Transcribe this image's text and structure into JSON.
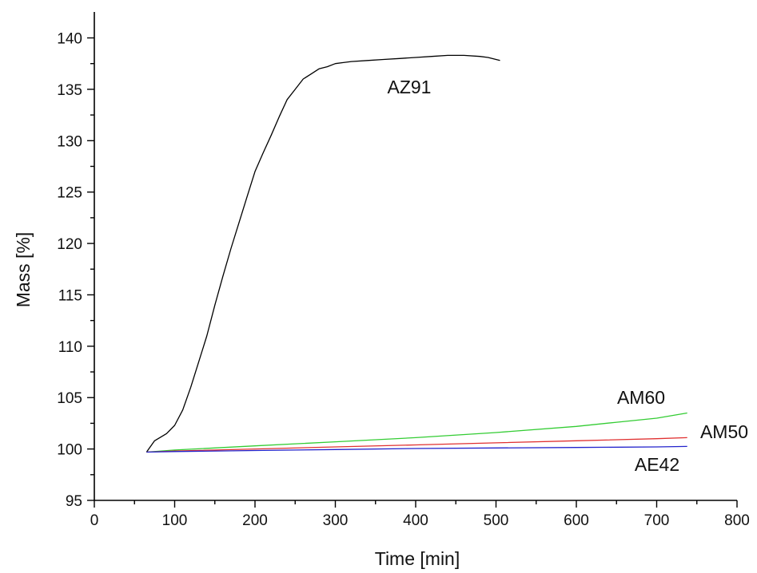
{
  "chart_data": {
    "type": "line",
    "title": "",
    "xlabel": "Time [min]",
    "ylabel": "Mass [%]",
    "xlim": [
      0,
      800
    ],
    "ylim": [
      95,
      140
    ],
    "xticks": [
      0,
      100,
      200,
      300,
      400,
      500,
      600,
      700,
      800
    ],
    "yticks": [
      95,
      100,
      105,
      110,
      115,
      120,
      125,
      130,
      135,
      140
    ],
    "grid": false,
    "legend": "none (series labelled directly on curves)",
    "series": [
      {
        "name": "AZ91",
        "color": "#000000",
        "x": [
          65,
          75,
          90,
          100,
          110,
          120,
          130,
          140,
          150,
          160,
          170,
          180,
          190,
          200,
          210,
          220,
          230,
          240,
          250,
          260,
          270,
          280,
          290,
          300,
          310,
          320,
          340,
          360,
          380,
          400,
          420,
          440,
          460,
          480,
          490,
          505
        ],
        "y": [
          99.7,
          100.8,
          101.5,
          102.3,
          103.8,
          106.0,
          108.5,
          111.0,
          114.0,
          116.8,
          119.5,
          122.0,
          124.5,
          127.0,
          128.8,
          130.5,
          132.3,
          134.0,
          135.0,
          136.0,
          136.5,
          137.0,
          137.2,
          137.5,
          137.6,
          137.7,
          137.8,
          137.9,
          138.0,
          138.1,
          138.2,
          138.3,
          138.3,
          138.2,
          138.1,
          137.8
        ]
      },
      {
        "name": "AM60",
        "color": "#33cc33",
        "x": [
          65,
          100,
          200,
          300,
          400,
          500,
          600,
          650,
          700,
          738
        ],
        "y": [
          99.7,
          99.9,
          100.3,
          100.7,
          101.1,
          101.6,
          102.2,
          102.6,
          103.0,
          103.5
        ]
      },
      {
        "name": "AM50",
        "color": "#e03030",
        "x": [
          65,
          100,
          200,
          300,
          400,
          500,
          600,
          700,
          738
        ],
        "y": [
          99.7,
          99.8,
          100.0,
          100.2,
          100.4,
          100.6,
          100.8,
          101.0,
          101.1
        ]
      },
      {
        "name": "AE42",
        "color": "#2222cc",
        "x": [
          65,
          100,
          200,
          300,
          400,
          500,
          600,
          700,
          738
        ],
        "y": [
          99.7,
          99.75,
          99.85,
          99.95,
          100.05,
          100.1,
          100.15,
          100.2,
          100.25
        ]
      }
    ]
  }
}
